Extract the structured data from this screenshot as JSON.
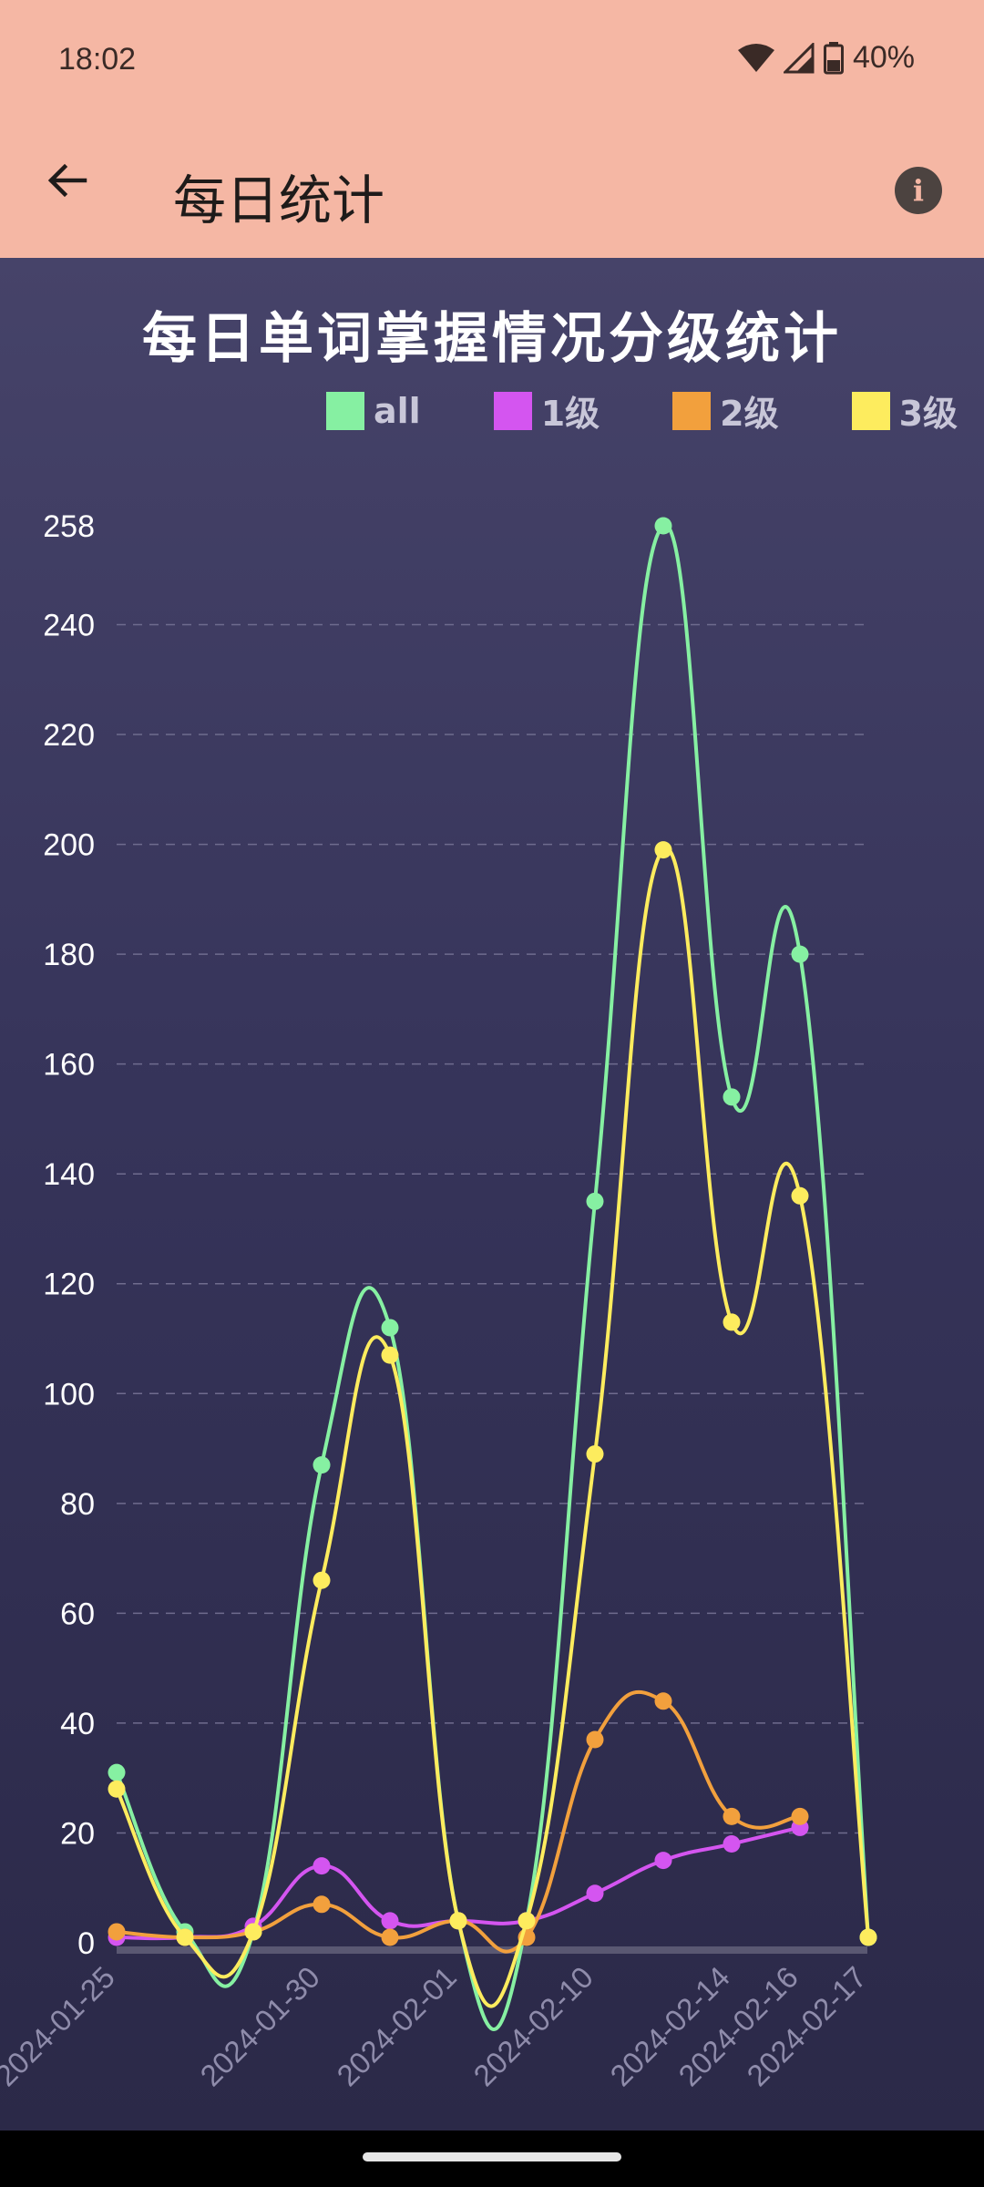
{
  "status": {
    "time": "18:02",
    "battery": "40%"
  },
  "appbar": {
    "title": "每日统计",
    "back_icon": "arrow-back-icon",
    "info_icon": "info-icon"
  },
  "chart_data": {
    "type": "line",
    "title": "每日单词掌握情况分级统计",
    "categories": [
      "2024-01-25",
      "",
      "",
      "2024-01-30",
      "",
      "2024-02-01",
      "",
      "2024-02-10",
      "",
      "2024-02-14",
      "2024-02-16",
      "2024-02-17"
    ],
    "ylim": [
      0,
      258
    ],
    "y_ticks": [
      0,
      20,
      40,
      60,
      80,
      100,
      120,
      140,
      160,
      180,
      200,
      220,
      240,
      258
    ],
    "grid": true,
    "legend": "top-right",
    "series": [
      {
        "name": "all",
        "color": "#86f0a2",
        "values": [
          31,
          2,
          2,
          87,
          112,
          4,
          4,
          135,
          258,
          154,
          180,
          1
        ]
      },
      {
        "name": "1级",
        "color": "#d455f0",
        "values": [
          1,
          1,
          3,
          14,
          4,
          4,
          4,
          9,
          15,
          18,
          21,
          null
        ]
      },
      {
        "name": "2级",
        "color": "#f2a03d",
        "values": [
          2,
          1,
          2,
          7,
          1,
          4,
          1,
          37,
          44,
          23,
          23,
          null
        ]
      },
      {
        "name": "3级",
        "color": "#fdec5e",
        "values": [
          28,
          1,
          2,
          66,
          107,
          4,
          4,
          89,
          199,
          113,
          136,
          1
        ]
      }
    ]
  }
}
